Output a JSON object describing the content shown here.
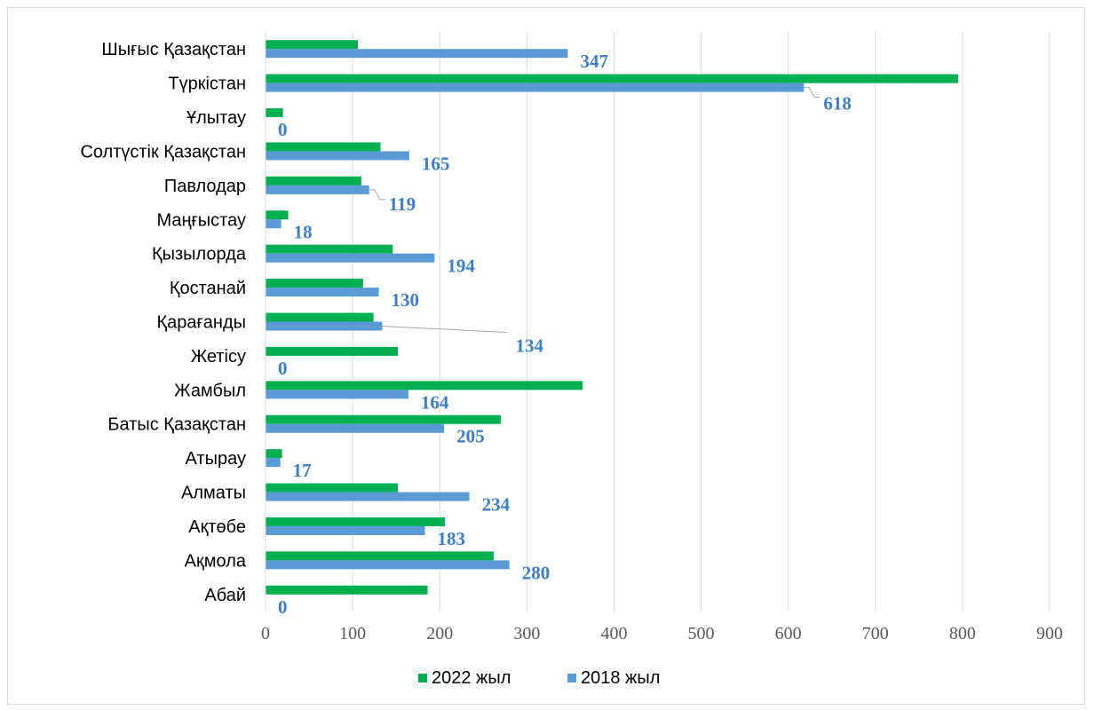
{
  "chart_data": {
    "type": "bar",
    "orientation": "horizontal",
    "categories": [
      "Шығыс  Қазақстан",
      "Түркістан",
      "Ұлытау",
      "Солтүстік Қазақстан",
      "Павлодар",
      "Маңғыстау",
      "Қызылорда",
      "Қостанай",
      "Қарағанды",
      "Жетісу",
      "Жамбыл",
      "Батыс Қазақстан",
      "Атырау",
      "Алматы",
      "Ақтөбе",
      "Ақмола",
      "Абай"
    ],
    "series": [
      {
        "name": "2022 жыл",
        "color": "#00b050",
        "values": [
          106,
          795,
          20,
          132,
          110,
          26,
          146,
          112,
          124,
          152,
          364,
          270,
          19,
          152,
          206,
          262,
          186
        ]
      },
      {
        "name": "2018 жыл",
        "color": "#5b9bd5",
        "values": [
          347,
          618,
          0,
          165,
          119,
          18,
          194,
          130,
          134,
          0,
          164,
          205,
          17,
          234,
          183,
          280,
          0
        ],
        "data_labels": [
          "347",
          "618",
          "0",
          "165",
          "119",
          "18",
          "194",
          "130",
          "134",
          "0",
          "164",
          "205",
          "17",
          "234",
          "183",
          "280",
          "0"
        ]
      }
    ],
    "xlim": [
      0,
      900
    ],
    "xticks": [
      "0",
      "100",
      "200",
      "300",
      "400",
      "500",
      "600",
      "700",
      "800",
      "900"
    ],
    "grid": "vertical",
    "legend_position": "bottom",
    "title": "",
    "xlabel": "",
    "ylabel": ""
  }
}
